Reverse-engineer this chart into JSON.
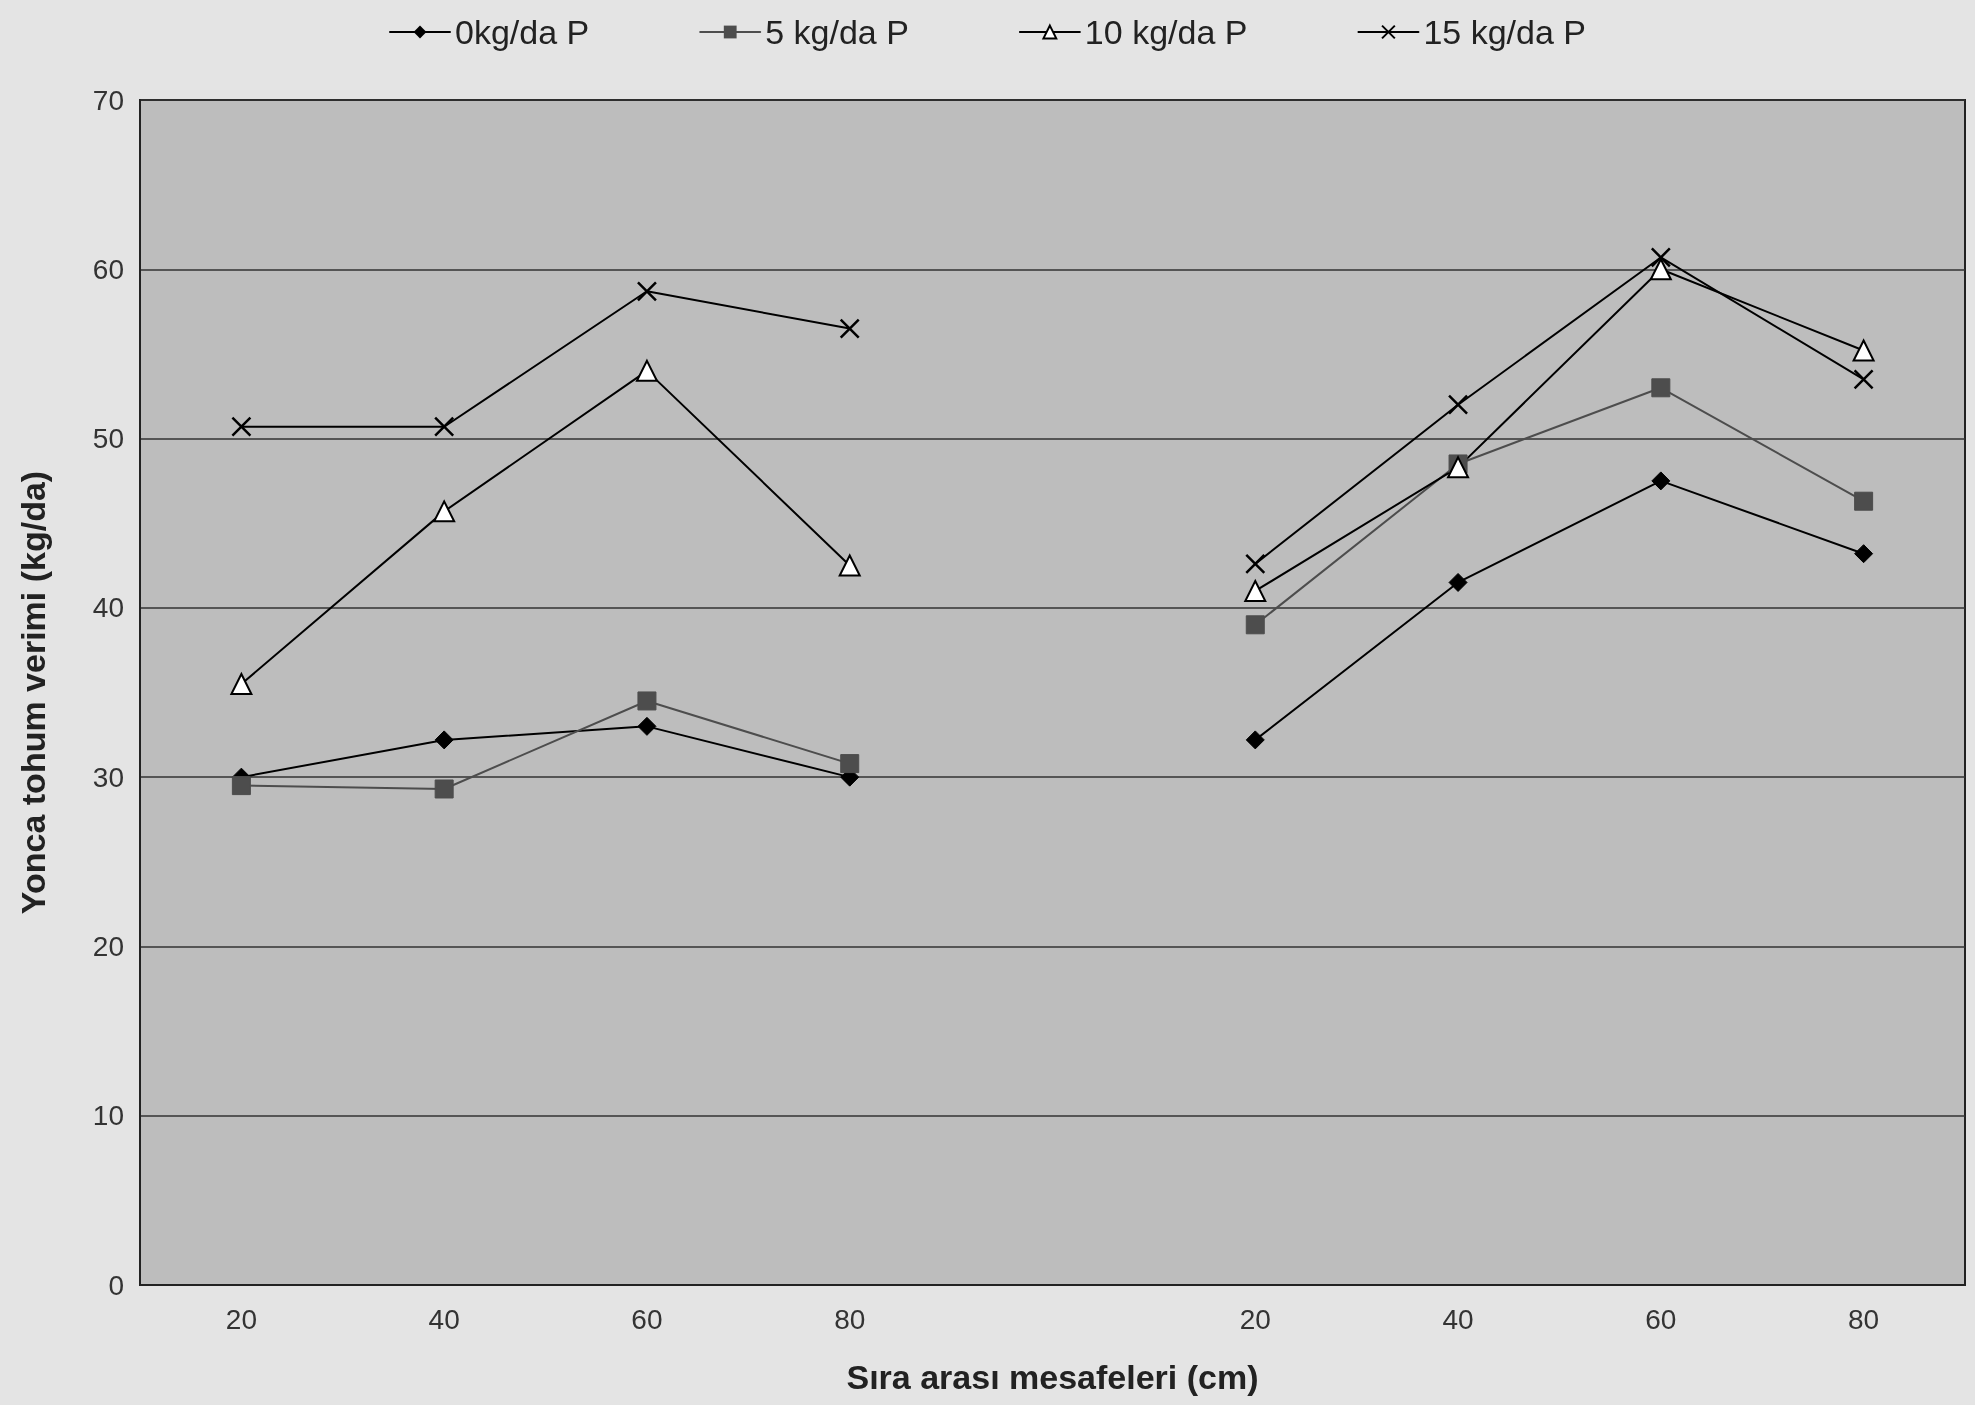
{
  "chart_data": {
    "type": "line",
    "xlabel": "Sıra arası mesafeleri (cm)",
    "ylabel": "Yonca tohum verimi (kg/da)",
    "categories": [
      "20",
      "40",
      "60",
      "80",
      null,
      "20",
      "40",
      "60",
      "80"
    ],
    "series": [
      {
        "name": "0kg/da P",
        "color": "#000000",
        "marker": "diamond",
        "values": [
          30,
          32.2,
          33,
          30,
          null,
          32.2,
          41.5,
          47.5,
          43.2
        ]
      },
      {
        "name": "5 kg/da P",
        "color": "#4d4d4d",
        "marker": "square",
        "values": [
          29.5,
          29.3,
          34.5,
          30.8,
          null,
          39,
          48.5,
          53,
          46.3
        ]
      },
      {
        "name": "10 kg/da P",
        "color": "#000000",
        "marker": "triangle",
        "values": [
          35.5,
          45.7,
          54,
          42.5,
          null,
          41,
          48.3,
          60,
          55.2
        ]
      },
      {
        "name": "15 kg/da P",
        "color": "#000000",
        "marker": "cross",
        "values": [
          50.7,
          50.7,
          58.7,
          56.5,
          null,
          42.6,
          52,
          60.7,
          53.5
        ]
      }
    ],
    "ylim": [
      0,
      70
    ],
    "yticks": [
      0,
      10,
      20,
      30,
      40,
      50,
      60,
      70
    ],
    "grid": "y",
    "legend": "top",
    "line_style": "solid"
  }
}
